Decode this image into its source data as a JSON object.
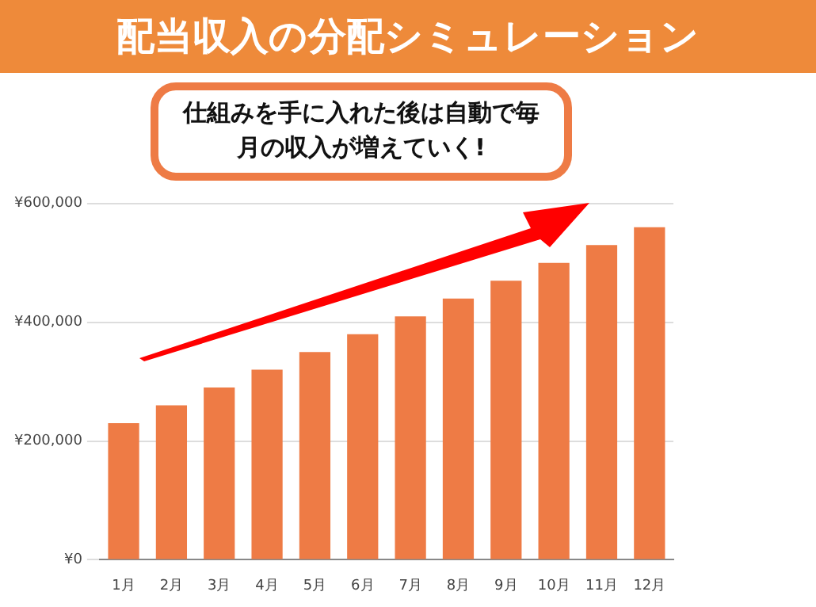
{
  "chart_data": {
    "type": "bar",
    "title": "配当収入の分配シミュレーション",
    "categories": [
      "1月",
      "2月",
      "3月",
      "4月",
      "5月",
      "6月",
      "7月",
      "8月",
      "9月",
      "10月",
      "11月",
      "12月"
    ],
    "values": [
      230000,
      260000,
      290000,
      320000,
      350000,
      380000,
      410000,
      440000,
      470000,
      500000,
      530000,
      560000
    ],
    "color": "#ee7b45",
    "ylim": [
      0,
      600000
    ],
    "yticks": [
      {
        "value": 0,
        "label": "¥0"
      },
      {
        "value": 200000,
        "label": "¥200,000"
      },
      {
        "value": 400000,
        "label": "¥400,000"
      },
      {
        "value": 600000,
        "label": "¥600,000"
      }
    ],
    "grid": "y",
    "legend": false,
    "annotations": [
      "仕組みを手に入れた後は自動で毎月の収入が増えていく!"
    ]
  }
}
